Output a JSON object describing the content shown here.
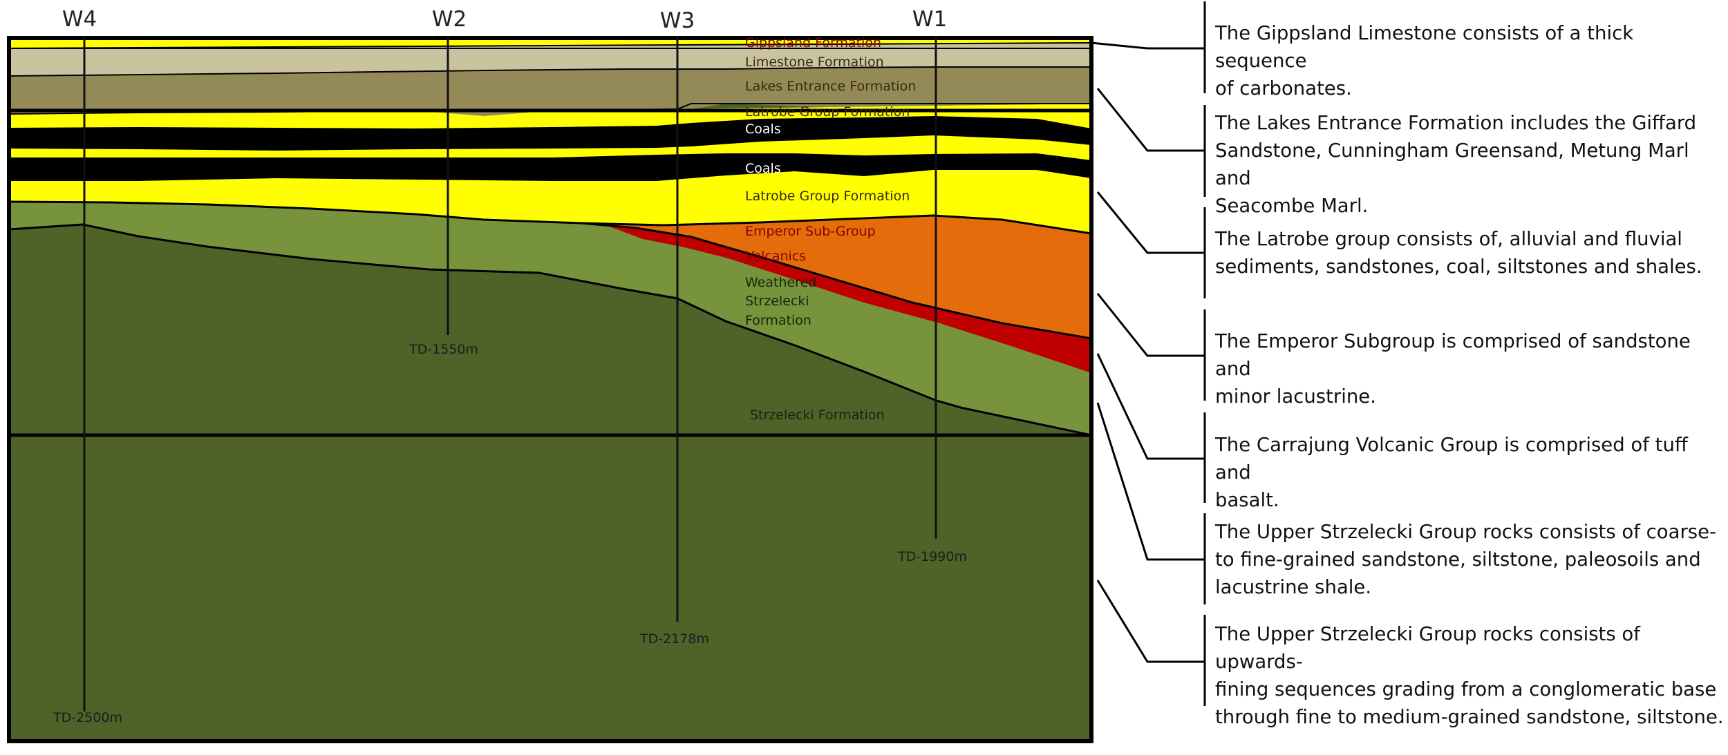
{
  "wells": [
    {
      "name": "W4",
      "td": "TD-2500m"
    },
    {
      "name": "W2",
      "td": "TD-1550m"
    },
    {
      "name": "W3",
      "td": "TD-2178m"
    },
    {
      "name": "W1",
      "td": "TD-1990m"
    }
  ],
  "layers": {
    "gippsland": "Gippsland Formation",
    "limestone": "Limestone Formation",
    "lakes_entrance": "Lakes Entrance Formation",
    "latrobe_upper": "Latrobe Group Formation",
    "coals_1": "Coals",
    "coals_2": "Coals",
    "latrobe_lower": "Latrobe Group Formation",
    "emperor": "Emperor Sub-Group",
    "volcanics": "Volcanics",
    "weathered_1": "Weathered",
    "weathered_2": "Strzelecki",
    "weathered_3": "Formation",
    "strzelecki": "Strzelecki Formation"
  },
  "descriptions": [
    {
      "lines": [
        "The Gippsland Limestone consists of a thick sequence",
        "of carbonates."
      ]
    },
    {
      "lines": [
        "The Lakes Entrance Formation includes the Giffard",
        "Sandstone, Cunningham Greensand, Metung Marl and",
        "Seacombe Marl."
      ]
    },
    {
      "lines": [
        "The Latrobe group consists of, alluvial and fluvial",
        "sediments, sandstones, coal, siltstones and shales."
      ]
    },
    {
      "lines": [
        "The Emperor Subgroup is comprised of sandstone and",
        "minor lacustrine."
      ]
    },
    {
      "lines": [
        "The Carrajung Volcanic Group is comprised of tuff and",
        "basalt."
      ]
    },
    {
      "lines": [
        "The Upper Strzelecki Group rocks consists of coarse-",
        "to fine-grained sandstone, siltstone,  paleosoils and",
        "lacustrine shale."
      ]
    },
    {
      "lines": [
        "The Upper Strzelecki Group rocks consists of upwards-",
        "fining sequences grading from a conglomeratic base",
        "through fine to medium-grained sandstone, siltstone."
      ]
    }
  ],
  "colors": {
    "gippsland": "#ffff00",
    "limestone": "#c9c3a0",
    "lakes_entrance": "#948a58",
    "latrobe": "#ffff00",
    "coal": "#000000",
    "emperor": "#e46c0a",
    "volcanics": "#c00000",
    "weathered": "#77933c",
    "strzelecki": "#4f6228"
  }
}
